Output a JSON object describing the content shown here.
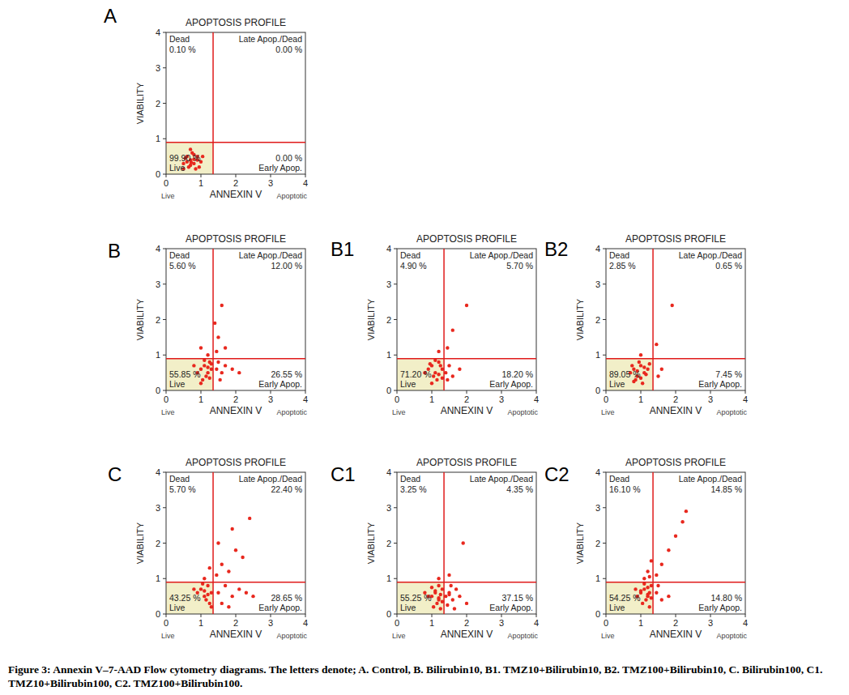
{
  "chart_data": [
    {
      "type": "scatter",
      "panel": "A",
      "title": "APOPTOSIS PROFILE",
      "x_label": "ANNEXIN V",
      "y_label": "VIABILITY",
      "x_axis_notes": [
        "Live",
        "Apoptotic"
      ],
      "xlim": [
        0,
        4
      ],
      "ylim": [
        0,
        4
      ],
      "xticks": [
        0,
        1,
        2,
        3,
        4
      ],
      "yticks": [
        0,
        1,
        2,
        3,
        4
      ],
      "gate_x": 1.35,
      "gate_y": 0.9,
      "color": "#e8281e",
      "quadrants": {
        "names": [
          "Dead",
          "Late Apop./Dead",
          "Live",
          "Early Apop."
        ],
        "values": [
          0.1,
          0,
          99.9,
          0
        ],
        "value_labels": [
          "0.10 %",
          "0.00 %",
          "99.90 %",
          "0.00 %"
        ]
      },
      "x": [
        0.5,
        0.6,
        0.7,
        0.8,
        0.9,
        0.75,
        0.65,
        0.85,
        1.0,
        0.55,
        0.7,
        0.8,
        0.95,
        0.6,
        0.9,
        1.05,
        0.7,
        0.5,
        0.8,
        0.72
      ],
      "values": [
        0.3,
        0.5,
        0.4,
        0.3,
        0.5,
        0.6,
        0.2,
        0.15,
        0.35,
        0.45,
        0.25,
        0.55,
        0.2,
        0.35,
        0.4,
        0.5,
        0.7,
        0.15,
        0.42,
        0.33
      ]
    },
    {
      "type": "scatter",
      "panel": "B",
      "title": "APOPTOSIS PROFILE",
      "x_label": "ANNEXIN V",
      "y_label": "VIABILITY",
      "x_axis_notes": [
        "Live",
        "Apoptotic"
      ],
      "xlim": [
        0,
        4
      ],
      "ylim": [
        0,
        4
      ],
      "xticks": [
        0,
        1,
        2,
        3,
        4
      ],
      "yticks": [
        0,
        1,
        2,
        3,
        4
      ],
      "gate_x": 1.35,
      "gate_y": 0.9,
      "color": "#e8281e",
      "quadrants": {
        "names": [
          "Dead",
          "Late Apop./Dead",
          "Live",
          "Early Apop."
        ],
        "values": [
          5.6,
          12,
          55.85,
          26.55
        ],
        "value_labels": [
          "5.60 %",
          "12.00 %",
          "55.85 %",
          "26.55 %"
        ]
      },
      "x": [
        1.0,
        1.1,
        1.2,
        1.25,
        1.3,
        1.15,
        0.9,
        1.05,
        1.2,
        1.3,
        0.8,
        1.1,
        1.0,
        1.25,
        1.45,
        1.6,
        1.5,
        1.7,
        1.9,
        1.55,
        2.1,
        1.45,
        1.5,
        1.7,
        1.4,
        1.6,
        1.2,
        1.0
      ],
      "values": [
        0.6,
        0.7,
        0.5,
        0.8,
        0.6,
        0.4,
        0.5,
        0.3,
        0.65,
        0.75,
        0.7,
        0.85,
        0.2,
        0.35,
        0.6,
        0.5,
        0.8,
        0.7,
        0.6,
        0.3,
        0.5,
        1.1,
        1.5,
        1.2,
        1.9,
        2.4,
        1.0,
        1.2
      ]
    },
    {
      "type": "scatter",
      "panel": "B1",
      "title": "APOPTOSIS PROFILE",
      "x_label": "ANNEXIN V",
      "y_label": "VIABILITY",
      "x_axis_notes": [
        "Live",
        "Apoptotic"
      ],
      "xlim": [
        0,
        4
      ],
      "ylim": [
        0,
        4
      ],
      "xticks": [
        0,
        1,
        2,
        3,
        4
      ],
      "yticks": [
        0,
        1,
        2,
        3,
        4
      ],
      "gate_x": 1.35,
      "gate_y": 0.9,
      "color": "#e8281e",
      "quadrants": {
        "names": [
          "Dead",
          "Late Apop./Dead",
          "Live",
          "Early Apop."
        ],
        "values": [
          4.9,
          5.7,
          71.2,
          18.2
        ],
        "value_labels": [
          "4.90 %",
          "5.70 %",
          "71.20 %",
          "18.20 %"
        ]
      },
      "x": [
        0.9,
        1.0,
        1.1,
        1.2,
        1.3,
        1.05,
        1.15,
        0.8,
        1.25,
        1.0,
        1.1,
        1.2,
        0.95,
        1.3,
        1.4,
        1.5,
        1.6,
        1.45,
        1.8,
        1.45,
        1.6,
        2.0,
        1.2
      ],
      "values": [
        0.6,
        0.7,
        0.5,
        0.8,
        0.6,
        0.4,
        0.3,
        0.5,
        0.7,
        0.2,
        0.85,
        0.45,
        0.75,
        0.35,
        0.5,
        0.7,
        0.4,
        0.3,
        0.6,
        1.2,
        1.7,
        2.4,
        1.1
      ]
    },
    {
      "type": "scatter",
      "panel": "B2",
      "title": "APOPTOSIS PROFILE",
      "x_label": "ANNEXIN V",
      "y_label": "VIABILITY",
      "x_axis_notes": [
        "Live",
        "Apoptotic"
      ],
      "xlim": [
        0,
        4
      ],
      "ylim": [
        0,
        4
      ],
      "xticks": [
        0,
        1,
        2,
        3,
        4
      ],
      "yticks": [
        0,
        1,
        2,
        3,
        4
      ],
      "gate_x": 1.35,
      "gate_y": 0.9,
      "color": "#e8281e",
      "quadrants": {
        "names": [
          "Dead",
          "Late Apop./Dead",
          "Live",
          "Early Apop."
        ],
        "values": [
          2.85,
          0.65,
          89.05,
          7.45
        ],
        "value_labels": [
          "2.85 %",
          "0.65 %",
          "89.05 %",
          "7.45 %"
        ]
      },
      "x": [
        0.7,
        0.8,
        0.9,
        1.0,
        1.1,
        0.85,
        0.95,
        1.05,
        1.2,
        0.75,
        0.9,
        1.0,
        1.15,
        1.25,
        0.8,
        1.1,
        1.5,
        1.6,
        1.45,
        1.9,
        1.0
      ],
      "values": [
        0.5,
        0.6,
        0.4,
        0.7,
        0.5,
        0.3,
        0.8,
        0.2,
        0.6,
        0.7,
        0.55,
        0.35,
        0.45,
        0.75,
        0.25,
        0.65,
        0.4,
        0.6,
        1.3,
        2.4,
        1.0
      ]
    },
    {
      "type": "scatter",
      "panel": "C",
      "title": "APOPTOSIS PROFILE",
      "x_label": "ANNEXIN V",
      "y_label": "VIABILITY",
      "x_axis_notes": [
        "Live",
        "Apoptotic"
      ],
      "xlim": [
        0,
        4
      ],
      "ylim": [
        0,
        4
      ],
      "xticks": [
        0,
        1,
        2,
        3,
        4
      ],
      "yticks": [
        0,
        1,
        2,
        3,
        4
      ],
      "gate_x": 1.35,
      "gate_y": 0.9,
      "color": "#e8281e",
      "quadrants": {
        "names": [
          "Dead",
          "Late Apop./Dead",
          "Live",
          "Early Apop."
        ],
        "values": [
          5.7,
          22.4,
          43.25,
          28.65
        ],
        "value_labels": [
          "5.70 %",
          "22.40 %",
          "43.25 %",
          "28.65 %"
        ]
      },
      "x": [
        1.0,
        1.1,
        1.2,
        1.3,
        0.9,
        1.15,
        1.25,
        0.8,
        1.05,
        1.3,
        1.2,
        1.1,
        1.5,
        1.7,
        1.9,
        2.1,
        1.6,
        2.3,
        1.8,
        2.5,
        1.45,
        1.6,
        1.8,
        2.0,
        1.5,
        2.2,
        1.9,
        2.4,
        1.1,
        1.25
      ],
      "values": [
        0.7,
        0.5,
        0.8,
        0.6,
        0.6,
        0.4,
        0.3,
        0.7,
        0.85,
        0.2,
        0.55,
        0.65,
        0.6,
        0.8,
        0.5,
        0.7,
        0.3,
        0.6,
        0.2,
        0.5,
        1.1,
        1.4,
        1.2,
        1.8,
        2.0,
        1.6,
        2.4,
        2.7,
        1.0,
        1.3
      ]
    },
    {
      "type": "scatter",
      "panel": "C1",
      "title": "APOPTOSIS PROFILE",
      "x_label": "ANNEXIN V",
      "y_label": "VIABILITY",
      "x_axis_notes": [
        "Live",
        "Apoptotic"
      ],
      "xlim": [
        0,
        4
      ],
      "ylim": [
        0,
        4
      ],
      "xticks": [
        0,
        1,
        2,
        3,
        4
      ],
      "yticks": [
        0,
        1,
        2,
        3,
        4
      ],
      "gate_x": 1.35,
      "gate_y": 0.9,
      "color": "#e8281e",
      "quadrants": {
        "names": [
          "Dead",
          "Late Apop./Dead",
          "Live",
          "Early Apop."
        ],
        "values": [
          3.25,
          4.35,
          55.25,
          37.15
        ],
        "value_labels": [
          "3.25 %",
          "4.35 %",
          "55.25 %",
          "37.15 %"
        ]
      },
      "x": [
        1.0,
        1.1,
        1.2,
        1.3,
        1.15,
        1.25,
        0.9,
        1.05,
        1.2,
        1.3,
        1.1,
        1.0,
        1.25,
        0.8,
        1.2,
        1.4,
        1.5,
        1.6,
        1.7,
        1.45,
        1.55,
        1.8,
        2.0,
        1.65,
        1.5,
        1.5,
        1.9,
        1.2
      ],
      "values": [
        0.5,
        0.6,
        0.4,
        0.7,
        0.3,
        0.55,
        0.5,
        0.2,
        0.8,
        0.35,
        0.65,
        0.75,
        0.15,
        0.6,
        0.45,
        0.5,
        0.6,
        0.4,
        0.7,
        0.25,
        0.8,
        0.5,
        0.3,
        0.15,
        0.55,
        1.1,
        2.0,
        1.0
      ]
    },
    {
      "type": "scatter",
      "panel": "C2",
      "title": "APOPTOSIS PROFILE",
      "x_label": "ANNEXIN V",
      "y_label": "VIABILITY",
      "x_axis_notes": [
        "Live",
        "Apoptotic"
      ],
      "xlim": [
        0,
        4
      ],
      "ylim": [
        0,
        4
      ],
      "xticks": [
        0,
        1,
        2,
        3,
        4
      ],
      "yticks": [
        0,
        1,
        2,
        3,
        4
      ],
      "gate_x": 1.35,
      "gate_y": 0.9,
      "color": "#e8281e",
      "quadrants": {
        "names": [
          "Dead",
          "Late Apop./Dead",
          "Live",
          "Early Apop."
        ],
        "values": [
          16.1,
          14.85,
          54.25,
          14.8
        ],
        "value_labels": [
          "16.10 %",
          "14.85 %",
          "54.25 %",
          "14.80 %"
        ]
      },
      "x": [
        1.0,
        1.1,
        1.2,
        1.3,
        1.15,
        1.25,
        0.9,
        1.05,
        1.2,
        1.3,
        1.1,
        1.0,
        1.25,
        0.85,
        1.2,
        1.45,
        1.6,
        1.5,
        1.8,
        1.45,
        1.6,
        1.8,
        2.0,
        2.2,
        2.3,
        1.1,
        1.2,
        1.3,
        1.25
      ],
      "values": [
        0.6,
        0.7,
        0.5,
        0.8,
        0.4,
        0.6,
        0.5,
        0.3,
        0.75,
        0.45,
        0.85,
        0.65,
        0.2,
        0.7,
        0.55,
        0.6,
        0.4,
        0.8,
        0.5,
        1.1,
        1.4,
        1.8,
        2.2,
        2.6,
        2.9,
        1.0,
        1.2,
        1.5,
        1.05
      ]
    }
  ],
  "caption": "Figure 3: Annexin V–7-AAD Flow cytometry diagrams. The letters denote; A. Control, B. Bilirubin10, B1. TMZ10+Bilirubin10, B2. TMZ100+Bilirubin10, C. Bilirubin100, C1. TMZ10+Bilirubin100, C2. TMZ100+Bilirubin100."
}
